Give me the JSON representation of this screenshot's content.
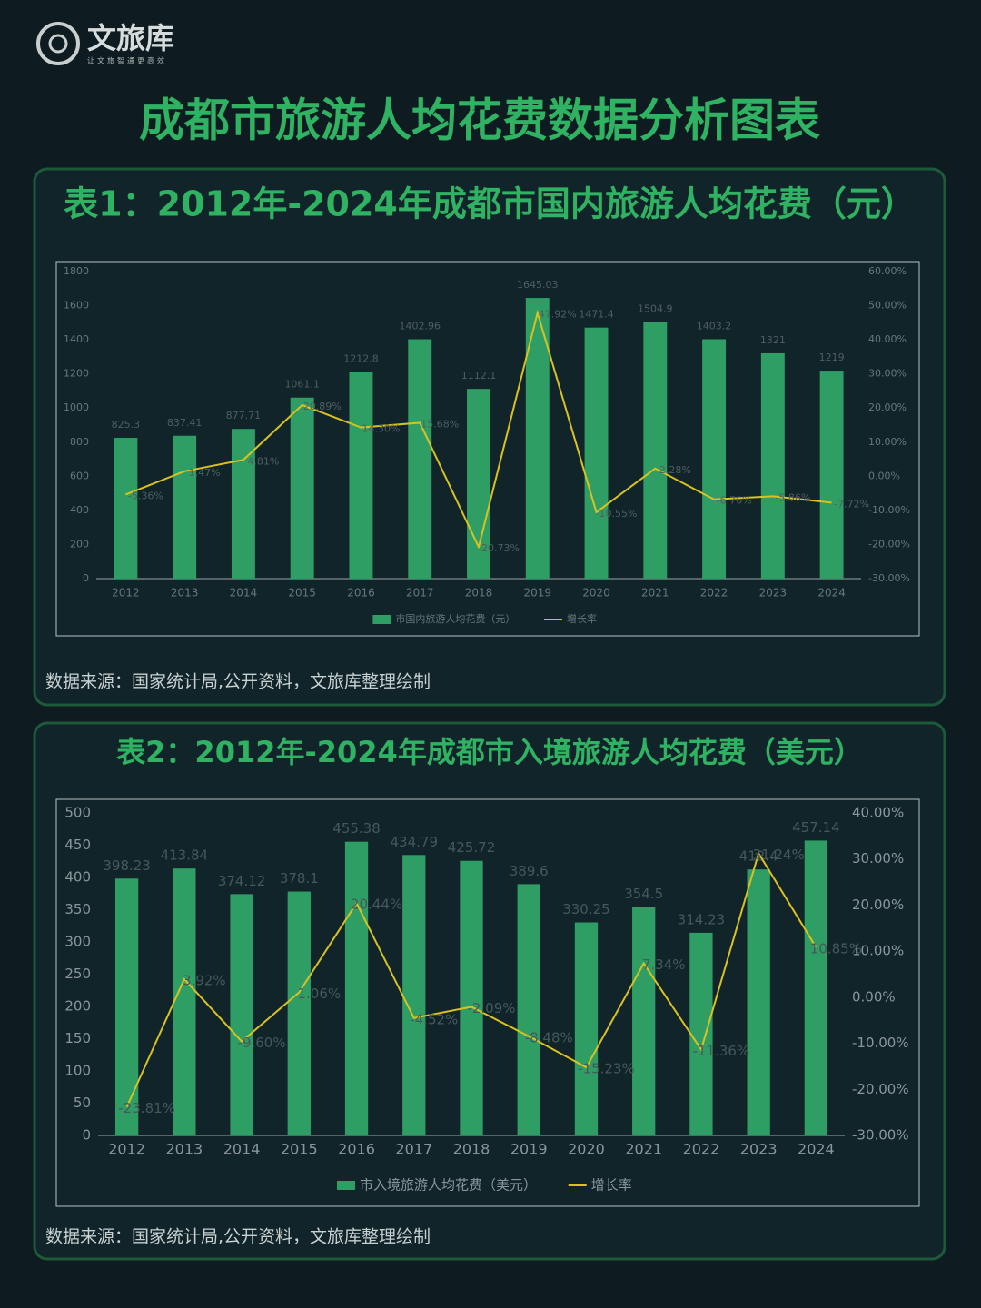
{
  "header": {
    "logo": "文旅库",
    "tagline": "让文旅智通更高效",
    "title": "成都市旅游人均花费数据分析图表"
  },
  "chart_data": [
    {
      "type": "bar",
      "title": "表1：2012年-2024年成都市国内旅游人均花费（元）",
      "source": "数据来源：国家统计局,公开资料，文旅库整理绘制",
      "categories": [
        "2012",
        "2013",
        "2014",
        "2015",
        "2016",
        "2017",
        "2018",
        "2019",
        "2020",
        "2021",
        "2022",
        "2023",
        "2024"
      ],
      "series": [
        {
          "name": "市国内旅游人均花费（元）",
          "type": "bar",
          "color": "#2f9e64",
          "values": [
            825.3,
            837.41,
            877.71,
            1061.1,
            1212.8,
            1402.96,
            1112.1,
            1645.03,
            1471.4,
            1504.9,
            1403.2,
            1321,
            1219
          ]
        },
        {
          "name": "增长率",
          "type": "line",
          "axis": "y2",
          "color": "#d9c21f",
          "values": [
            -5.36,
            1.47,
            4.81,
            20.89,
            14.3,
            15.68,
            -20.73,
            47.92,
            -10.55,
            2.28,
            -6.76,
            -5.86,
            -7.72
          ],
          "value_labels": [
            "-5.36%",
            "1.47%",
            "4.81%",
            "20.89%",
            "14.30%",
            "15.68%",
            "-20.73%",
            "47.92%",
            "-10.55%",
            "2.28%",
            "-6.76%",
            "-5.86%",
            "-7.72%"
          ]
        }
      ],
      "ylim": [
        0,
        1800
      ],
      "yticks": [
        0,
        200,
        400,
        600,
        800,
        1000,
        1200,
        1400,
        1600,
        1800
      ],
      "y2lim": [
        -30,
        60
      ],
      "y2ticks": [
        {
          "value": -30,
          "label": "-30.00%"
        },
        {
          "value": -20,
          "label": "-20.00%"
        },
        {
          "value": -10,
          "label": "-10.00%"
        },
        {
          "value": 0,
          "label": "0.00%"
        },
        {
          "value": 10,
          "label": "10.00%"
        },
        {
          "value": 20,
          "label": "20.00%"
        },
        {
          "value": 30,
          "label": "30.00%"
        },
        {
          "value": 40,
          "label": "40.00%"
        },
        {
          "value": 50,
          "label": "50.00%"
        },
        {
          "value": 60,
          "label": "60.00%"
        }
      ]
    },
    {
      "type": "bar",
      "title": "表2：2012年-2024年成都市入境旅游人均花费（美元）",
      "source": "数据来源：国家统计局,公开资料，文旅库整理绘制",
      "categories": [
        "2012",
        "2013",
        "2014",
        "2015",
        "2016",
        "2017",
        "2018",
        "2019",
        "2020",
        "2021",
        "2022",
        "2023",
        "2024"
      ],
      "series": [
        {
          "name": "市入境旅游人均花费（美元）",
          "type": "bar",
          "color": "#2f9e64",
          "values": [
            398.23,
            413.84,
            374.12,
            378.1,
            455.38,
            434.79,
            425.72,
            389.6,
            330.25,
            354.5,
            314.23,
            412.4,
            457.14
          ]
        },
        {
          "name": "增长率",
          "type": "line",
          "axis": "y2",
          "color": "#d9c21f",
          "values": [
            -23.81,
            3.92,
            -9.6,
            1.06,
            20.44,
            -4.52,
            -2.09,
            -8.48,
            -15.23,
            7.34,
            -11.36,
            31.24,
            10.85
          ],
          "value_labels": [
            "-23.81%",
            "3.92%",
            "-9.60%",
            "1.06%",
            "20.44%",
            "-4.52%",
            "-2.09%",
            "-8.48%",
            "-15.23%",
            "7.34%",
            "-11.36%",
            "31.24%",
            "10.85%"
          ]
        }
      ],
      "ylim": [
        0,
        500
      ],
      "yticks": [
        0,
        50,
        100,
        150,
        200,
        250,
        300,
        350,
        400,
        450,
        500
      ],
      "y2lim": [
        -30,
        40
      ],
      "y2ticks": [
        {
          "value": -30,
          "label": "-30.00%"
        },
        {
          "value": -20,
          "label": "-20.00%"
        },
        {
          "value": -10,
          "label": "-10.00%"
        },
        {
          "value": 0,
          "label": "0.00%"
        },
        {
          "value": 10,
          "label": "10.00%"
        },
        {
          "value": 20,
          "label": "20.00%"
        },
        {
          "value": 30,
          "label": "30.00%"
        },
        {
          "value": 40,
          "label": "40.00%"
        }
      ]
    }
  ]
}
